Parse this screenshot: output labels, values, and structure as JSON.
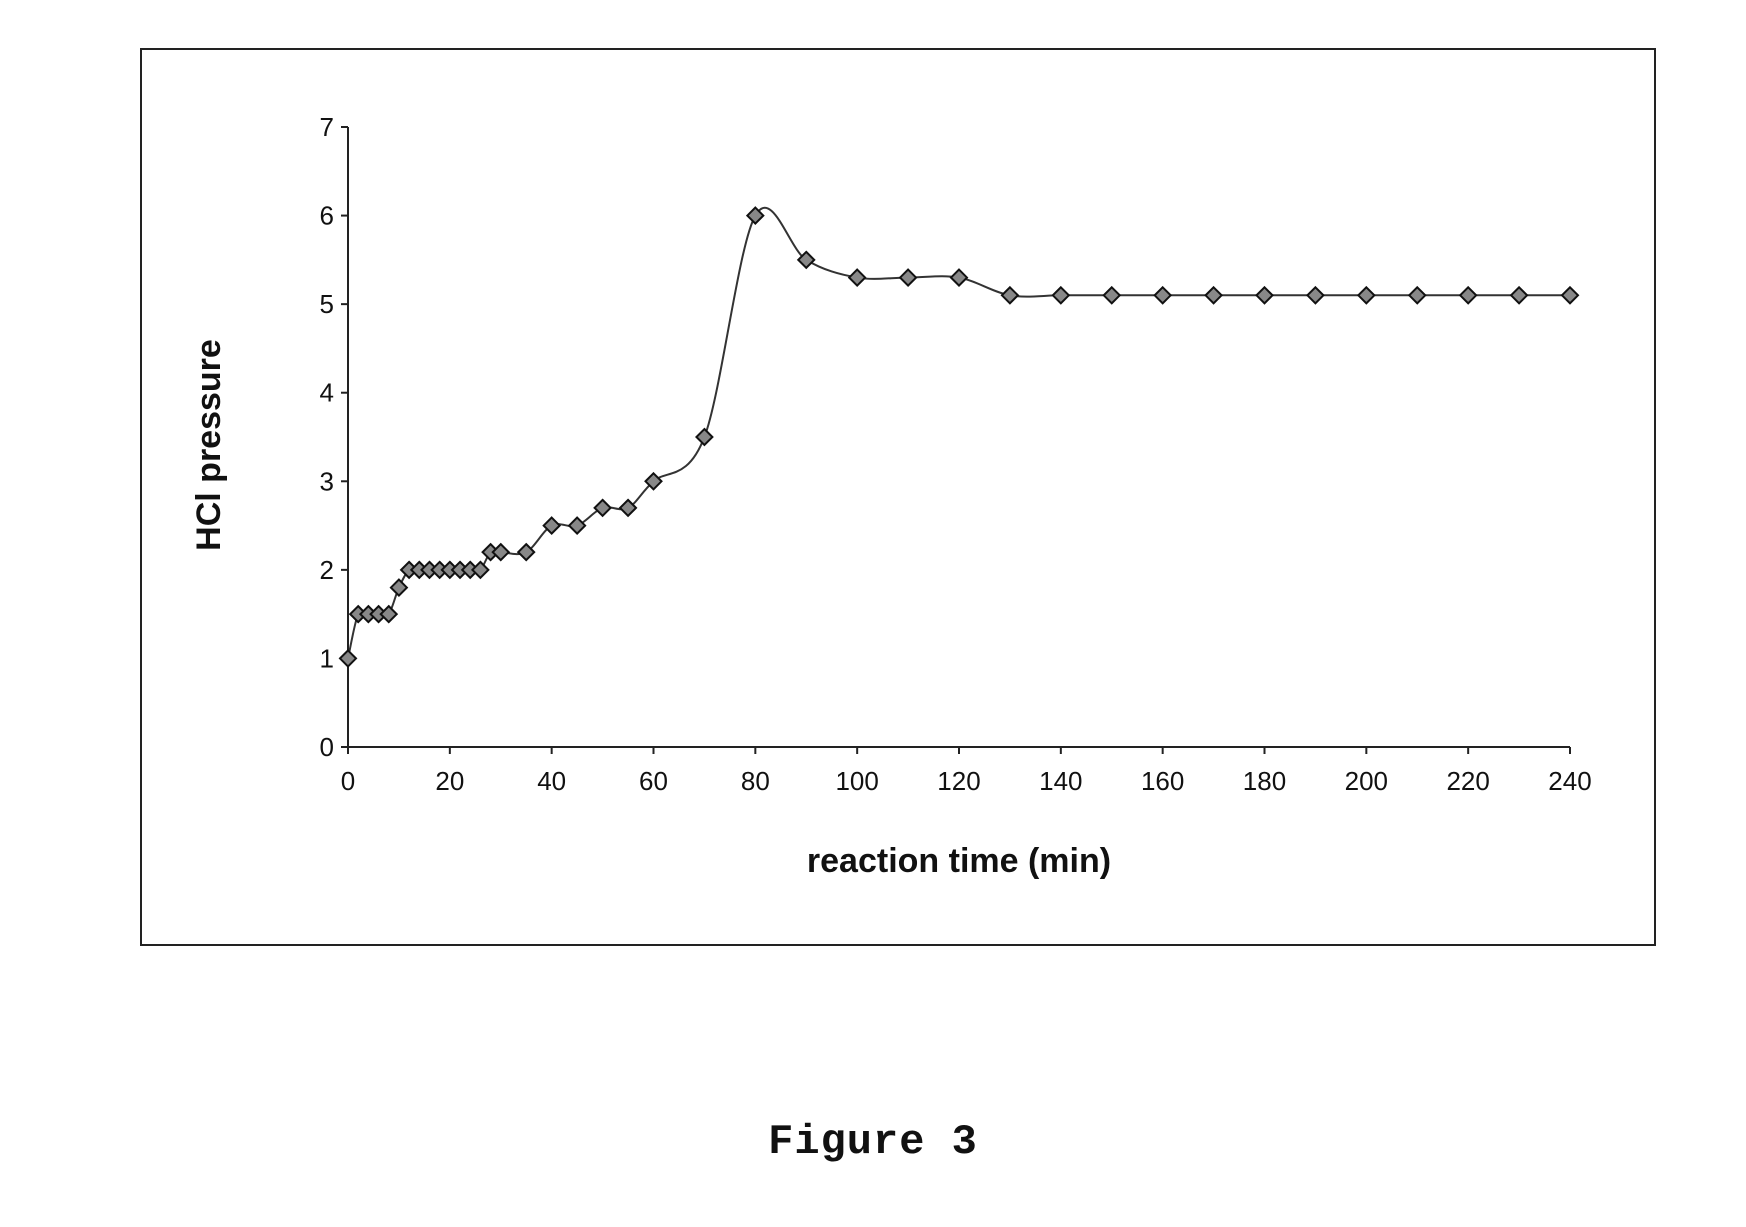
{
  "figure": {
    "caption": "Figure 3"
  },
  "chart_data": {
    "type": "line",
    "xlabel": "reaction time (min)",
    "ylabel": "HCl pressure",
    "xlim": [
      0,
      240
    ],
    "ylim": [
      0,
      7
    ],
    "xticks": [
      0,
      20,
      40,
      60,
      80,
      100,
      120,
      140,
      160,
      180,
      200,
      220,
      240
    ],
    "yticks": [
      0,
      1,
      2,
      3,
      4,
      5,
      6,
      7
    ],
    "grid": false,
    "marker": "diamond",
    "smooth": true,
    "series": [
      {
        "color": "#333333",
        "x": [
          0,
          2,
          4,
          6,
          8,
          10,
          12,
          14,
          16,
          18,
          20,
          22,
          24,
          26,
          28,
          30,
          35,
          40,
          45,
          50,
          55,
          60,
          70,
          80,
          90,
          100,
          110,
          120,
          130,
          140,
          150,
          160,
          170,
          180,
          190,
          200,
          210,
          220,
          230,
          240
        ],
        "y": [
          1.0,
          1.5,
          1.5,
          1.5,
          1.5,
          1.8,
          2.0,
          2.0,
          2.0,
          2.0,
          2.0,
          2.0,
          2.0,
          2.0,
          2.2,
          2.2,
          2.2,
          2.5,
          2.5,
          2.7,
          2.7,
          3.0,
          3.5,
          6.0,
          5.5,
          5.3,
          5.3,
          5.3,
          5.1,
          5.1,
          5.1,
          5.1,
          5.1,
          5.1,
          5.1,
          5.1,
          5.1,
          5.1,
          5.1,
          5.1
        ]
      }
    ]
  }
}
